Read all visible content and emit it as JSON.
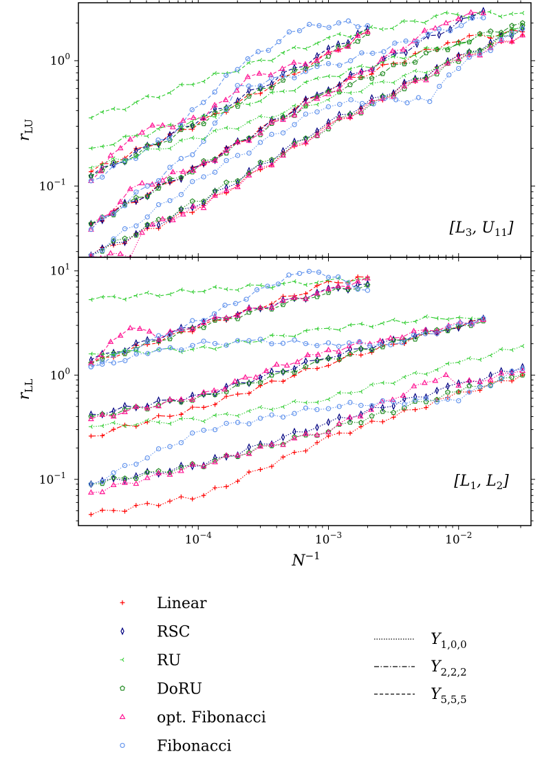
{
  "figure": {
    "xlabel": "N⁻¹",
    "panel_top": {
      "ylabel": "r_LU",
      "annotation": "[L3, U11]"
    },
    "panel_bottom": {
      "ylabel": "r_LL",
      "annotation": "[L1, L2]"
    }
  },
  "legend": {
    "methods": [
      {
        "label": "Linear",
        "color": "#ff0000",
        "marker": "plus"
      },
      {
        "label": "RSC",
        "color": "#000080",
        "marker": "thin-diamond"
      },
      {
        "label": "RU",
        "color": "#32cd32",
        "marker": "tri-left"
      },
      {
        "label": "DoRU",
        "color": "#228b22",
        "marker": "pentagon"
      },
      {
        "label": "opt. Fibonacci",
        "color": "#ff1493",
        "marker": "triangle"
      },
      {
        "label": "Fibonacci",
        "color": "#6495ed",
        "marker": "circle"
      }
    ],
    "orders": [
      {
        "label": "Y1,0,0",
        "dash": "dotted"
      },
      {
        "label": "Y2,2,2",
        "dash": "dashdot"
      },
      {
        "label": "Y5,5,5",
        "dash": "dashed"
      }
    ]
  },
  "chart_data": [
    {
      "type": "line",
      "panel": "top",
      "ylabel": "r_LU",
      "annotation": "[L3, U11]",
      "x_scale": "log",
      "y_scale": "log",
      "xlim": [
        1.2e-05,
        0.036
      ],
      "ylim": [
        0.027,
        2.9
      ],
      "x_ticks": [
        "10^-4",
        "10^-3",
        "10^-2"
      ],
      "y_ticks": [
        "10^-1",
        "10^0"
      ],
      "series": [
        {
          "name": "Linear",
          "order": "Y5,5,5",
          "x": [
            1.5e-05,
            0.00011,
            0.001,
            0.002
          ],
          "y": [
            0.13,
            0.33,
            1.1,
            1.7
          ]
        },
        {
          "name": "RSC",
          "order": "Y5,5,5",
          "x": [
            1.5e-05,
            0.00011,
            0.001,
            0.002
          ],
          "y": [
            0.12,
            0.35,
            1.2,
            1.8
          ]
        },
        {
          "name": "RU",
          "order": "Y5,5,5",
          "x": [
            1.5e-05,
            0.00011,
            0.001,
            0.008,
            0.031
          ],
          "y": [
            0.35,
            0.7,
            1.5,
            2.3,
            2.4
          ]
        },
        {
          "name": "DoRU",
          "order": "Y5,5,5",
          "x": [
            1.5e-05,
            0.00011,
            0.001,
            0.002
          ],
          "y": [
            0.12,
            0.33,
            1.1,
            1.65
          ]
        },
        {
          "name": "opt. Fibonacci",
          "order": "Y5,5,5",
          "x": [
            1.5e-05,
            3e-05,
            3.7e-05,
            0.00011,
            0.00024,
            0.001,
            0.002
          ],
          "y": [
            0.11,
            0.25,
            0.28,
            0.35,
            0.72,
            1.1,
            1.7
          ]
        },
        {
          "name": "Fibonacci",
          "order": "Y5,5,5",
          "x": [
            1.5e-05,
            6e-05,
            0.0002,
            0.0006,
            0.0012,
            0.002
          ],
          "y": [
            0.11,
            0.25,
            0.9,
            1.8,
            2.0,
            1.9
          ]
        },
        {
          "name": "Linear",
          "order": "Y2,2,2",
          "x": [
            1.5e-05,
            0.00011,
            0.001,
            0.01,
            0.031
          ],
          "y": [
            0.05,
            0.15,
            0.6,
            1.5,
            1.7
          ]
        },
        {
          "name": "RSC",
          "order": "Y2,2,2",
          "x": [
            1.5e-05,
            0.00011,
            0.001,
            0.0155
          ],
          "y": [
            0.05,
            0.15,
            0.6,
            2.5
          ]
        },
        {
          "name": "RU",
          "order": "Y2,2,2",
          "x": [
            1.5e-05,
            0.00011,
            0.001,
            0.01,
            0.031
          ],
          "y": [
            0.2,
            0.35,
            0.75,
            1.4,
            1.8
          ]
        },
        {
          "name": "DoRU",
          "order": "Y2,2,2",
          "x": [
            1.5e-05,
            0.00011,
            0.001,
            0.01,
            0.031
          ],
          "y": [
            0.05,
            0.15,
            0.55,
            1.4,
            2.0
          ]
        },
        {
          "name": "opt. Fibonacci",
          "order": "Y2,2,2",
          "x": [
            1.5e-05,
            3e-05,
            3.7e-05,
            0.00011,
            0.001,
            0.008,
            0.0155
          ],
          "y": [
            0.045,
            0.09,
            0.1,
            0.15,
            0.55,
            2.1,
            2.4
          ]
        },
        {
          "name": "Fibonacci",
          "order": "Y2,2,2",
          "x": [
            1.5e-05,
            0.00011,
            0.0002,
            0.001,
            0.0155
          ],
          "y": [
            0.045,
            0.22,
            0.6,
            0.9,
            2.2
          ]
        },
        {
          "name": "Linear",
          "order": "Y1,0,0",
          "x": [
            1.5e-05,
            0.00011,
            0.001,
            0.01,
            0.031
          ],
          "y": [
            0.028,
            0.07,
            0.3,
            1.05,
            1.6
          ]
        },
        {
          "name": "RSC",
          "order": "Y1,0,0",
          "x": [
            1.5e-05,
            0.00011,
            0.001,
            0.01,
            0.031
          ],
          "y": [
            0.028,
            0.075,
            0.32,
            1.05,
            1.8
          ]
        },
        {
          "name": "RU",
          "order": "Y1,0,0",
          "x": [
            1.5e-05,
            0.00011,
            0.001,
            0.01,
            0.031
          ],
          "y": [
            0.14,
            0.25,
            0.5,
            1.0,
            1.8
          ]
        },
        {
          "name": "DoRU",
          "order": "Y1,0,0",
          "x": [
            1.5e-05,
            0.00011,
            0.001,
            0.01,
            0.031
          ],
          "y": [
            0.028,
            0.08,
            0.3,
            1.0,
            1.9
          ]
        },
        {
          "name": "opt. Fibonacci",
          "order": "Y1,0,0",
          "x": [
            1.5e-05,
            3e-05,
            3.7e-05,
            0.00011,
            0.001,
            0.01,
            0.031
          ],
          "y": [
            0.028,
            0.028,
            0.045,
            0.07,
            0.3,
            1.0,
            1.6
          ]
        },
        {
          "name": "Fibonacci",
          "order": "Y1,0,0",
          "x": [
            1.5e-05,
            0.00011,
            0.001,
            0.006,
            0.01,
            0.031
          ],
          "y": [
            0.028,
            0.12,
            0.45,
            0.5,
            0.9,
            1.8
          ]
        }
      ]
    },
    {
      "type": "line",
      "panel": "bottom",
      "ylabel": "r_LL",
      "annotation": "[L1, L2]",
      "x_scale": "log",
      "y_scale": "log",
      "xlim": [
        1.2e-05,
        0.036
      ],
      "ylim": [
        0.036,
        13.5
      ],
      "xlabel": "N⁻¹",
      "x_ticks": [
        "10^-4",
        "10^-3",
        "10^-2"
      ],
      "y_ticks": [
        "10^-1",
        "10^0",
        "10^1"
      ],
      "series": [
        {
          "name": "Linear",
          "order": "Y5,5,5",
          "x": [
            1.5e-05,
            0.00011,
            0.001,
            0.002
          ],
          "y": [
            1.3,
            3.0,
            7.5,
            8.7
          ]
        },
        {
          "name": "RSC",
          "order": "Y5,5,5",
          "x": [
            1.5e-05,
            0.00011,
            0.001,
            0.002
          ],
          "y": [
            1.4,
            3.2,
            6.5,
            7.5
          ]
        },
        {
          "name": "RU",
          "order": "Y5,5,5",
          "x": [
            1.5e-05,
            0.00011,
            0.001,
            0.002
          ],
          "y": [
            5.3,
            6.5,
            8.0,
            8.5
          ]
        },
        {
          "name": "DoRU",
          "order": "Y5,5,5",
          "x": [
            1.5e-05,
            0.00011,
            0.001,
            0.002
          ],
          "y": [
            1.3,
            3.0,
            6.3,
            7.3
          ]
        },
        {
          "name": "opt. Fibonacci",
          "order": "Y5,5,5",
          "x": [
            1.5e-05,
            3e-05,
            5e-05,
            0.00011,
            0.001,
            0.002
          ],
          "y": [
            1.3,
            3.0,
            2.3,
            3.2,
            6.5,
            8.5
          ]
        },
        {
          "name": "Fibonacci",
          "order": "Y5,5,5",
          "x": [
            1.5e-05,
            0.00011,
            0.0006,
            0.001,
            0.002
          ],
          "y": [
            1.2,
            3.5,
            10.0,
            9.0,
            6.5
          ]
        },
        {
          "name": "Linear",
          "order": "Y2,2,2",
          "x": [
            1.5e-05,
            0.00011,
            0.001,
            0.01,
            0.0155
          ],
          "y": [
            0.26,
            0.5,
            1.3,
            3.0,
            3.4
          ]
        },
        {
          "name": "RSC",
          "order": "Y2,2,2",
          "x": [
            1.5e-05,
            0.00011,
            0.001,
            0.01,
            0.0155
          ],
          "y": [
            0.42,
            0.65,
            1.5,
            3.0,
            3.5
          ]
        },
        {
          "name": "RU",
          "order": "Y2,2,2",
          "x": [
            1.5e-05,
            0.00011,
            0.001,
            0.01,
            0.0155
          ],
          "y": [
            1.6,
            1.8,
            2.8,
            3.7,
            3.5
          ]
        },
        {
          "name": "DoRU",
          "order": "Y2,2,2",
          "x": [
            1.5e-05,
            0.00011,
            0.001,
            0.01,
            0.0155
          ],
          "y": [
            0.4,
            0.62,
            1.4,
            3.0,
            3.3
          ]
        },
        {
          "name": "opt. Fibonacci",
          "order": "Y2,2,2",
          "x": [
            1.5e-05,
            0.00011,
            0.0004,
            0.001,
            0.003,
            0.0155
          ],
          "y": [
            0.38,
            0.65,
            1.2,
            1.7,
            2.3,
            3.4
          ]
        },
        {
          "name": "Fibonacci",
          "order": "Y2,2,2",
          "x": [
            1.5e-05,
            5e-05,
            0.00011,
            0.0003,
            0.001,
            0.003,
            0.0155
          ],
          "y": [
            1.2,
            1.7,
            2.0,
            2.1,
            2.0,
            2.0,
            3.5
          ]
        },
        {
          "name": "Linear",
          "order": "Y1,0,0",
          "x": [
            1.5e-05,
            0.00011,
            0.001,
            0.01,
            0.031
          ],
          "y": [
            0.046,
            0.07,
            0.25,
            0.65,
            1.0
          ]
        },
        {
          "name": "RSC",
          "order": "Y1,0,0",
          "x": [
            1.5e-05,
            0.00011,
            0.001,
            0.01,
            0.031
          ],
          "y": [
            0.09,
            0.14,
            0.35,
            0.8,
            1.2
          ]
        },
        {
          "name": "RU",
          "order": "Y1,0,0",
          "x": [
            1.5e-05,
            0.00011,
            0.001,
            0.01,
            0.031
          ],
          "y": [
            0.32,
            0.38,
            0.6,
            1.3,
            1.9
          ]
        },
        {
          "name": "DoRU",
          "order": "Y1,0,0",
          "x": [
            1.5e-05,
            0.00011,
            0.001,
            0.01,
            0.031
          ],
          "y": [
            0.09,
            0.14,
            0.3,
            0.7,
            1.0
          ]
        },
        {
          "name": "opt. Fibonacci",
          "order": "Y1,0,0",
          "x": [
            1.5e-05,
            0.00011,
            0.001,
            0.008,
            0.01,
            0.031
          ],
          "y": [
            0.075,
            0.14,
            0.3,
            1.05,
            0.8,
            1.1
          ]
        },
        {
          "name": "Fibonacci",
          "order": "Y1,0,0",
          "x": [
            1.5e-05,
            0.00011,
            0.001,
            0.01,
            0.031
          ],
          "y": [
            0.09,
            0.3,
            0.5,
            0.6,
            1.15
          ]
        }
      ]
    }
  ]
}
